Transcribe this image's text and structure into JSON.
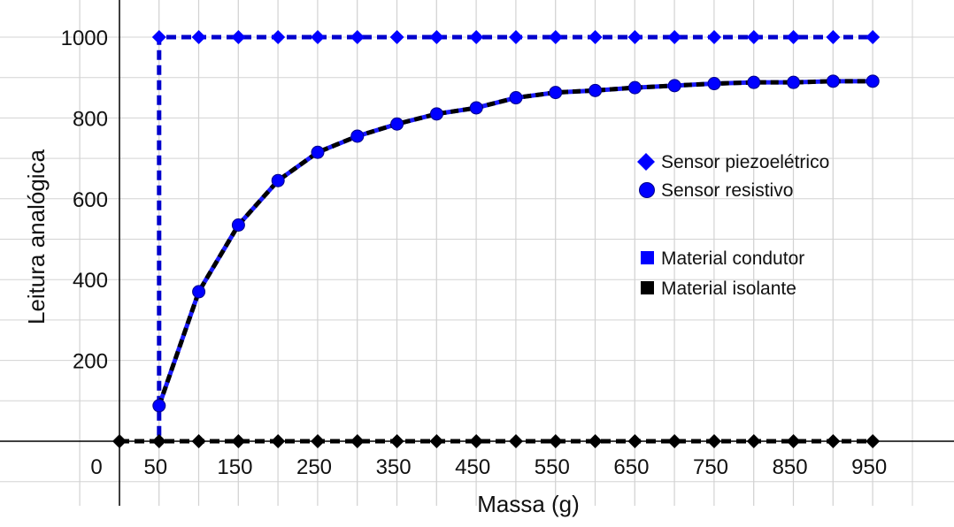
{
  "chart_data": {
    "type": "line",
    "title": "",
    "xlabel": "Massa (g)",
    "ylabel": "Leitura analógica",
    "xlim": [
      -30,
      1000
    ],
    "ylim": [
      -160,
      1080
    ],
    "x_tick_labels": [
      "0",
      "50",
      "150",
      "250",
      "350",
      "450",
      "550",
      "650",
      "750",
      "850",
      "950"
    ],
    "x_tick_values": [
      0,
      50,
      150,
      250,
      350,
      450,
      550,
      650,
      750,
      850,
      950
    ],
    "y_tick_labels": [
      "200",
      "400",
      "600",
      "800",
      "1000"
    ],
    "y_tick_values": [
      200,
      400,
      600,
      800,
      1000
    ],
    "grid": true,
    "legend_position": "right",
    "x": [
      0,
      50,
      100,
      150,
      200,
      250,
      300,
      350,
      400,
      450,
      500,
      550,
      600,
      650,
      700,
      750,
      800,
      850,
      900,
      950
    ],
    "series": [
      {
        "sensor": "piezo",
        "material": "conductor",
        "values": [
          0,
          1000,
          1000,
          1000,
          1000,
          1000,
          1000,
          1000,
          1000,
          1000,
          1000,
          1000,
          1000,
          1000,
          1000,
          1000,
          1000,
          1000,
          1000,
          1000
        ],
        "colors": [
          "#1a1aff",
          "#0000cc"
        ]
      },
      {
        "sensor": "piezo",
        "material": "insulator",
        "values": [
          0,
          0,
          0,
          0,
          0,
          0,
          0,
          0,
          0,
          0,
          0,
          0,
          0,
          0,
          0,
          0,
          0,
          0,
          0,
          0
        ],
        "colors": [
          "#000000",
          "#000000"
        ]
      },
      {
        "sensor": "resistive",
        "material": "both",
        "values": [
          null,
          88,
          370,
          535,
          645,
          715,
          755,
          785,
          810,
          825,
          850,
          863,
          868,
          875,
          880,
          885,
          888,
          888,
          891,
          891
        ],
        "colors": [
          "#1a1aff",
          "#000000"
        ]
      }
    ],
    "legend": {
      "sensors": [
        {
          "marker": "diamond",
          "label": "Sensor piezoelétrico"
        },
        {
          "marker": "circle",
          "label": "Sensor resistivo"
        }
      ],
      "materials": [
        {
          "color": "#0000ff",
          "label": "Material condutor"
        },
        {
          "color": "#000000",
          "label": "Material isolante"
        }
      ]
    }
  }
}
